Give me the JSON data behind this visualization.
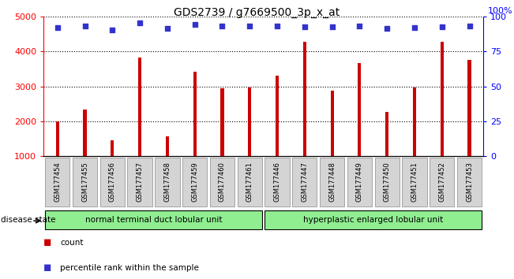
{
  "title": "GDS2739 / g7669500_3p_x_at",
  "categories": [
    "GSM177454",
    "GSM177455",
    "GSM177456",
    "GSM177457",
    "GSM177458",
    "GSM177459",
    "GSM177460",
    "GSM177461",
    "GSM177446",
    "GSM177447",
    "GSM177448",
    "GSM177449",
    "GSM177450",
    "GSM177451",
    "GSM177452",
    "GSM177453"
  ],
  "counts": [
    2000,
    2340,
    1450,
    3830,
    1570,
    3420,
    2960,
    2970,
    3310,
    4280,
    2870,
    3680,
    2270,
    2980,
    4290,
    3760
  ],
  "percentile_left_values": [
    4700,
    4730,
    4620,
    4820,
    4670,
    4780,
    4740,
    4740,
    4740,
    4720,
    4720,
    4740,
    4660,
    4700,
    4720,
    4740
  ],
  "bar_color": "#cc0000",
  "dot_color": "#3333cc",
  "ylim_left": [
    1000,
    5000
  ],
  "ylim_right": [
    0,
    100
  ],
  "yticks_left": [
    1000,
    2000,
    3000,
    4000,
    5000
  ],
  "yticks_right": [
    0,
    25,
    50,
    75,
    100
  ],
  "right_axis_pct_label": "100%",
  "group1_label": "normal terminal duct lobular unit",
  "group2_label": "hyperplastic enlarged lobular unit",
  "n_group1": 8,
  "n_group2": 8,
  "disease_state_label": "disease state",
  "legend_count": "count",
  "legend_percentile": "percentile rank within the sample",
  "bar_width": 0.12,
  "group_color": "#90ee90",
  "xticklabel_bg": "#d4d4d4",
  "title_fontsize": 10,
  "tick_fontsize": 8,
  "label_fontsize": 7.5
}
